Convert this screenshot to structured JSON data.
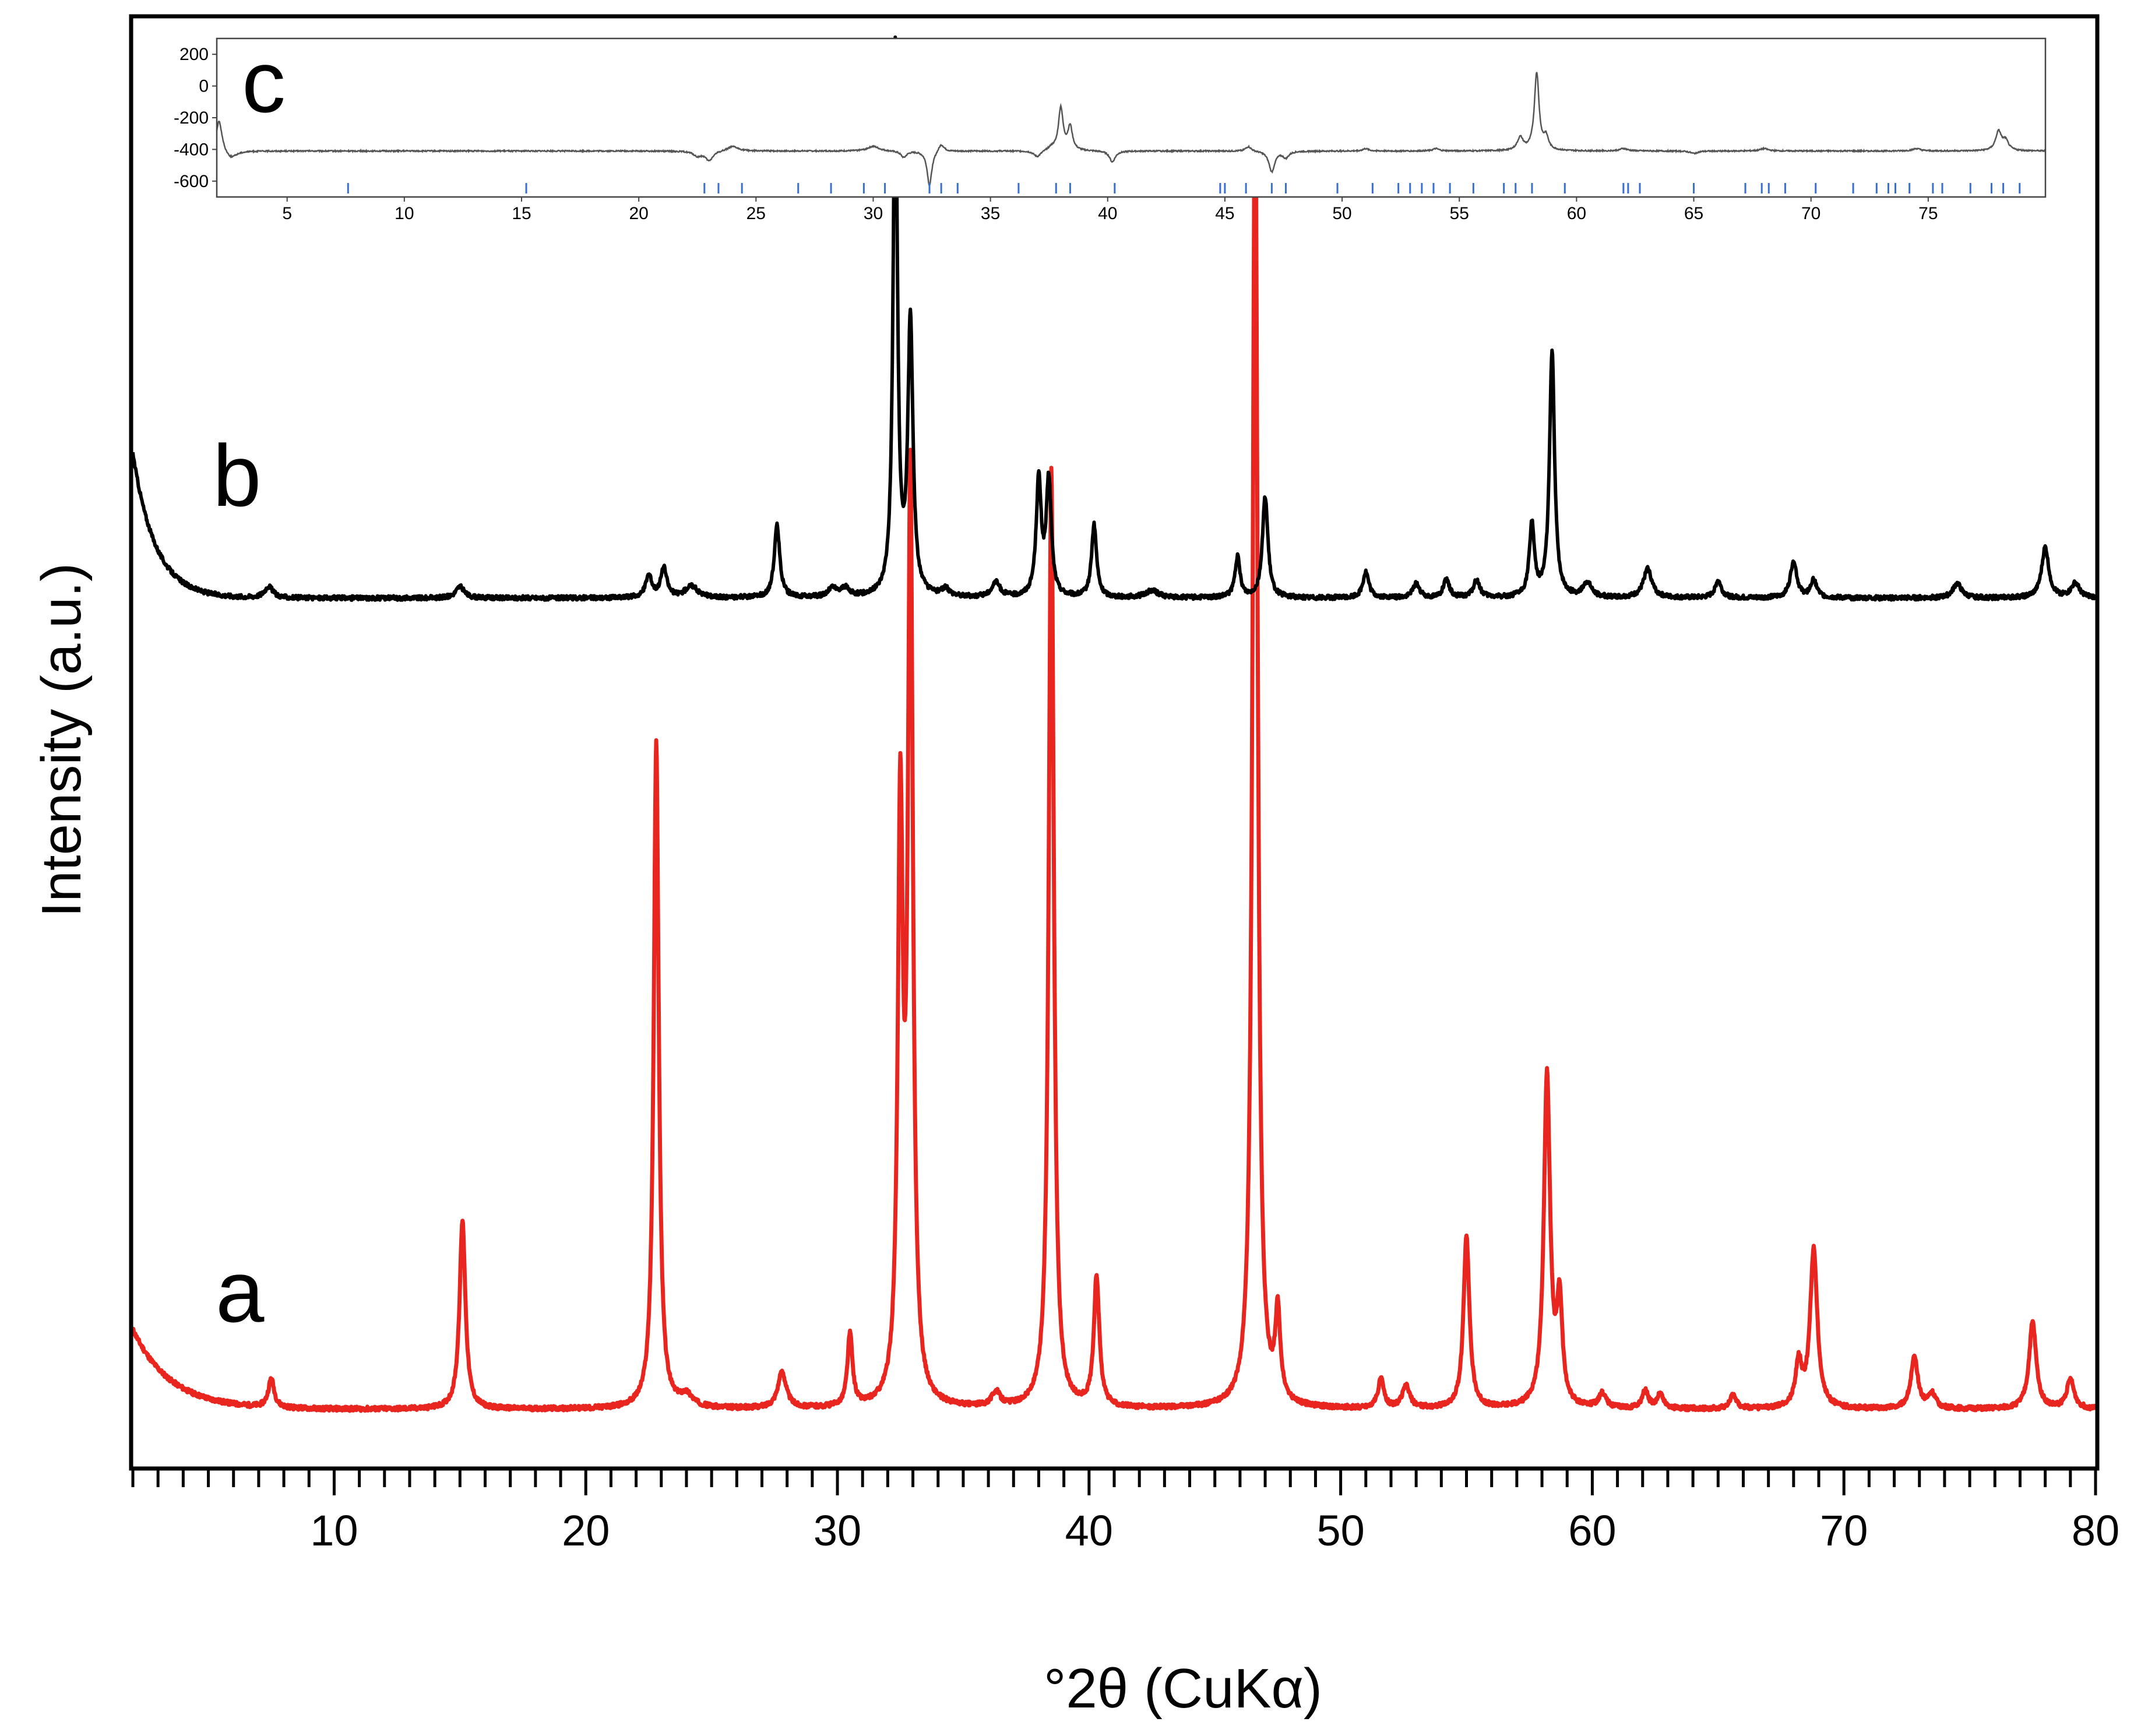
{
  "chart_data": [
    {
      "type": "line",
      "xlabel": "°2θ (CuKα)",
      "ylabel": "Intensity (a.u.)",
      "xlim": [
        2,
        80
      ],
      "x_ticks": [
        10,
        20,
        30,
        40,
        50,
        60,
        70,
        80
      ],
      "x_minor_step": 1,
      "y_ticks_shown": false,
      "grid": false,
      "legend": "none",
      "annotations": [
        "a",
        "b"
      ],
      "series": [
        {
          "label": "a",
          "color": "#e8261f",
          "baseline": 0.04,
          "background": {
            "amplitude": 0.055,
            "decay": 1.5
          },
          "peaks": [
            [
              7.5,
              0.02,
              0.14
            ],
            [
              15.1,
              0.13,
              0.14
            ],
            [
              22.8,
              0.46,
              0.12
            ],
            [
              24.0,
              0.008,
              0.3
            ],
            [
              27.8,
              0.025,
              0.2
            ],
            [
              30.5,
              0.05,
              0.12
            ],
            [
              32.5,
              0.4,
              0.12
            ],
            [
              32.9,
              0.63,
              0.12
            ],
            [
              36.3,
              0.01,
              0.2
            ],
            [
              38.5,
              0.65,
              0.12
            ],
            [
              40.3,
              0.09,
              0.13
            ],
            [
              46.6,
              0.94,
              0.12
            ],
            [
              47.5,
              0.06,
              0.12
            ],
            [
              51.6,
              0.02,
              0.14
            ],
            [
              52.6,
              0.015,
              0.18
            ],
            [
              55.0,
              0.12,
              0.14
            ],
            [
              58.2,
              0.23,
              0.15
            ],
            [
              58.7,
              0.07,
              0.13
            ],
            [
              60.4,
              0.01,
              0.18
            ],
            [
              62.1,
              0.012,
              0.15
            ],
            [
              62.7,
              0.01,
              0.15
            ],
            [
              65.6,
              0.01,
              0.15
            ],
            [
              68.2,
              0.03,
              0.15
            ],
            [
              68.8,
              0.11,
              0.17
            ],
            [
              72.8,
              0.035,
              0.17
            ],
            [
              73.5,
              0.01,
              0.18
            ],
            [
              77.5,
              0.06,
              0.17
            ],
            [
              79.0,
              0.02,
              0.18
            ]
          ]
        },
        {
          "label": "b",
          "color": "#000000",
          "baseline": 0.6,
          "background": {
            "amplitude": 0.1,
            "decay": 0.9
          },
          "peaks": [
            [
              7.4,
              0.008,
              0.2
            ],
            [
              15.0,
              0.008,
              0.2
            ],
            [
              22.5,
              0.015,
              0.15
            ],
            [
              23.1,
              0.02,
              0.15
            ],
            [
              24.2,
              0.008,
              0.3
            ],
            [
              27.6,
              0.05,
              0.13
            ],
            [
              29.8,
              0.006,
              0.2
            ],
            [
              30.3,
              0.006,
              0.2
            ],
            [
              32.3,
              0.38,
              0.1
            ],
            [
              32.9,
              0.19,
              0.12
            ],
            [
              34.3,
              0.005,
              0.2
            ],
            [
              36.3,
              0.01,
              0.2
            ],
            [
              38.0,
              0.08,
              0.12
            ],
            [
              38.4,
              0.08,
              0.12
            ],
            [
              40.2,
              0.05,
              0.12
            ],
            [
              42.5,
              0.005,
              0.3
            ],
            [
              45.9,
              0.028,
              0.12
            ],
            [
              47.0,
              0.07,
              0.13
            ],
            [
              51.0,
              0.018,
              0.14
            ],
            [
              53.0,
              0.01,
              0.15
            ],
            [
              54.2,
              0.012,
              0.15
            ],
            [
              55.4,
              0.012,
              0.15
            ],
            [
              57.6,
              0.05,
              0.12
            ],
            [
              58.4,
              0.17,
              0.12
            ],
            [
              59.8,
              0.01,
              0.2
            ],
            [
              62.2,
              0.02,
              0.2
            ],
            [
              65.0,
              0.012,
              0.15
            ],
            [
              68.0,
              0.026,
              0.15
            ],
            [
              68.8,
              0.012,
              0.15
            ],
            [
              74.5,
              0.01,
              0.2
            ],
            [
              78.0,
              0.035,
              0.17
            ],
            [
              79.2,
              0.01,
              0.2
            ]
          ]
        }
      ]
    },
    {
      "type": "line",
      "panel_label": "c",
      "xlim": [
        2,
        80
      ],
      "ylim": [
        -700,
        300
      ],
      "x_ticks": [
        5,
        10,
        15,
        20,
        25,
        30,
        35,
        40,
        45,
        50,
        55,
        60,
        65,
        70,
        75
      ],
      "y_ticks": [
        200,
        0,
        -200,
        -400,
        -600
      ],
      "series": [
        {
          "color": "#555555",
          "baseline": -410,
          "features": [
            [
              2.1,
              200,
              0.15
            ],
            [
              2.6,
              -50,
              0.3
            ],
            [
              22.5,
              -30,
              0.2
            ],
            [
              23.0,
              -60,
              0.2
            ],
            [
              24.0,
              30,
              0.3
            ],
            [
              30.0,
              30,
              0.3
            ],
            [
              31.3,
              -40,
              0.15
            ],
            [
              32.4,
              -220,
              0.12
            ],
            [
              32.9,
              50,
              0.15
            ],
            [
              37.0,
              -40,
              0.2
            ],
            [
              37.6,
              20,
              0.2
            ],
            [
              38.0,
              270,
              0.12
            ],
            [
              38.4,
              150,
              0.12
            ],
            [
              40.2,
              -70,
              0.15
            ],
            [
              46.0,
              30,
              0.15
            ],
            [
              47.0,
              -130,
              0.15
            ],
            [
              47.6,
              -40,
              0.15
            ],
            [
              51.0,
              15,
              0.15
            ],
            [
              54.0,
              15,
              0.15
            ],
            [
              57.6,
              80,
              0.15
            ],
            [
              58.3,
              490,
              0.12
            ],
            [
              58.7,
              80,
              0.12
            ],
            [
              62.0,
              15,
              0.2
            ],
            [
              65.0,
              -15,
              0.2
            ],
            [
              68.0,
              15,
              0.2
            ],
            [
              74.5,
              15,
              0.2
            ],
            [
              78.0,
              120,
              0.15
            ],
            [
              78.3,
              60,
              0.15
            ]
          ]
        }
      ],
      "reflection_ticks": {
        "color": "#3a6fd0",
        "positions": [
          7.6,
          15.2,
          22.8,
          23.4,
          24.4,
          26.8,
          28.2,
          29.6,
          30.5,
          32.4,
          32.9,
          33.6,
          36.2,
          37.8,
          38.4,
          40.3,
          44.8,
          45.0,
          45.9,
          47.0,
          47.6,
          49.8,
          51.3,
          52.4,
          52.9,
          53.4,
          53.9,
          54.6,
          55.6,
          56.9,
          57.4,
          58.1,
          59.5,
          62.0,
          62.2,
          62.7,
          65.0,
          67.2,
          67.9,
          68.2,
          68.9,
          70.2,
          71.8,
          72.8,
          73.3,
          73.6,
          74.2,
          75.2,
          75.6,
          76.8,
          77.7,
          78.2,
          78.9
        ]
      }
    }
  ]
}
